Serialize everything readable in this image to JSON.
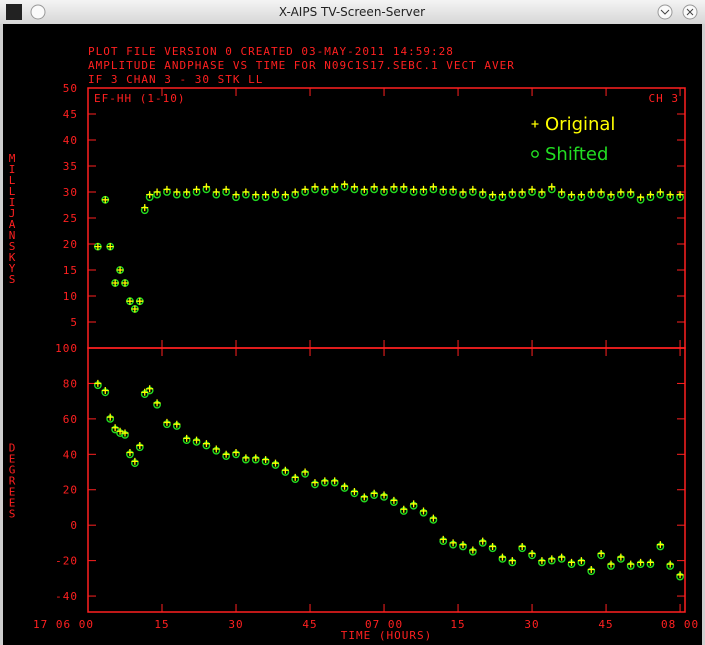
{
  "window": {
    "title": "X-AIPS TV-Screen-Server"
  },
  "header": {
    "lines": [
      "PLOT FILE VERSION 0  CREATED 03-MAY-2011 14:59:28",
      "AMPLITUDE ANDPHASE VS TIME  FOR  N09C1S17.SEBC.1  VECT AVER",
      "IF 3    CHAN 3 - 30    STK LL"
    ]
  },
  "chart_data": [
    {
      "type": "scatter",
      "ylabel": "MILLIJANSKYS",
      "panel_label": "EF-HH (1-10)",
      "channel_label": "CH 3",
      "xlim": [
        0,
        121
      ],
      "ylim": [
        0,
        50
      ],
      "yticks": [
        5,
        10,
        15,
        20,
        25,
        30,
        35,
        40,
        45,
        50
      ],
      "grid": false,
      "legend": "upper right",
      "x": [
        2,
        3.5,
        4.5,
        5.5,
        6.5,
        7.5,
        8.5,
        9.5,
        10.5,
        11.5,
        12.5,
        14,
        16,
        18,
        20,
        22,
        24,
        26,
        28,
        30,
        32,
        34,
        36,
        38,
        40,
        42,
        44,
        46,
        48,
        50,
        52,
        54,
        56,
        58,
        60,
        62,
        64,
        66,
        68,
        70,
        72,
        74,
        76,
        78,
        80,
        82,
        84,
        86,
        88,
        90,
        92,
        94,
        96,
        98,
        100,
        102,
        104,
        106,
        108,
        110,
        112,
        114,
        116,
        118,
        120
      ],
      "series": [
        {
          "name": "Original",
          "color": "#ffff00",
          "marker": "plus",
          "values": [
            19.5,
            28.5,
            19.5,
            12.5,
            15,
            12.5,
            9,
            7.5,
            9,
            27,
            29.5,
            30,
            30.5,
            30,
            30,
            30.5,
            31,
            30,
            30.5,
            29.5,
            30,
            29.5,
            29.5,
            30,
            29.5,
            30,
            30.5,
            31,
            30.5,
            31,
            31.5,
            31,
            30.5,
            31,
            30.5,
            31,
            31,
            30.5,
            30.5,
            31,
            30.5,
            30.5,
            30,
            30.5,
            30,
            29.5,
            29.5,
            30,
            30,
            30.5,
            30,
            31,
            30,
            29.5,
            29.5,
            30,
            30,
            29.5,
            30,
            30,
            29,
            29.5,
            30,
            29.5,
            29.5
          ]
        },
        {
          "name": "Shifted",
          "color": "#22dd22",
          "marker": "circle",
          "values": [
            19.5,
            28.5,
            19.5,
            12.5,
            15,
            12.5,
            9,
            7.5,
            9,
            26.5,
            29,
            29.5,
            30,
            29.5,
            29.5,
            30,
            30.5,
            29.5,
            30,
            29,
            29.5,
            29,
            29,
            29.5,
            29,
            29.5,
            30,
            30.5,
            30,
            30.5,
            31,
            30.5,
            30,
            30.5,
            30,
            30.5,
            30.5,
            30,
            30,
            30.5,
            30,
            30,
            29.5,
            30,
            29.5,
            29,
            29,
            29.5,
            29.5,
            30,
            29.5,
            30.5,
            29.5,
            29,
            29,
            29.5,
            29.5,
            29,
            29.5,
            29.5,
            28.5,
            29,
            29.5,
            29,
            29
          ]
        }
      ]
    },
    {
      "type": "scatter",
      "ylabel": "DEGREES",
      "xlabel": "TIME (HOURS)",
      "xlim": [
        0,
        121
      ],
      "ylim": [
        -49,
        100
      ],
      "yticks": [
        -40,
        -20,
        0,
        20,
        40,
        60,
        80,
        100
      ],
      "grid": false,
      "xticks": [
        {
          "value": 0,
          "label": "17 06 00"
        },
        15,
        30,
        45,
        {
          "value": 60,
          "label": "07 00"
        },
        {
          "value": 75,
          "label": "15"
        },
        {
          "value": 90,
          "label": "30"
        },
        {
          "value": 105,
          "label": "45"
        },
        {
          "value": 120,
          "label": "08 00"
        }
      ],
      "x": [
        2,
        3.5,
        4.5,
        5.5,
        6.5,
        7.5,
        8.5,
        9.5,
        10.5,
        11.5,
        12.5,
        14,
        16,
        18,
        20,
        22,
        24,
        26,
        28,
        30,
        32,
        34,
        36,
        38,
        40,
        42,
        44,
        46,
        48,
        50,
        52,
        54,
        56,
        58,
        60,
        62,
        64,
        66,
        68,
        70,
        72,
        74,
        76,
        78,
        80,
        82,
        84,
        86,
        88,
        90,
        92,
        94,
        96,
        98,
        100,
        102,
        104,
        106,
        108,
        110,
        112,
        114,
        116,
        118,
        120
      ],
      "series": [
        {
          "name": "Original",
          "color": "#ffff00",
          "marker": "plus",
          "values": [
            80,
            76,
            61,
            55,
            53,
            52,
            41,
            36,
            45,
            75,
            77,
            69,
            58,
            57,
            49,
            48,
            46,
            43,
            40,
            41,
            38,
            38,
            37,
            35,
            31,
            27,
            30,
            24,
            25,
            25,
            22,
            19,
            16,
            18,
            17,
            14,
            9,
            12,
            8,
            4,
            -8,
            -10,
            -11,
            -14,
            -9,
            -12,
            -18,
            -20,
            -12,
            -16,
            -20,
            -19,
            -18,
            -21,
            -20,
            -25,
            -16,
            -22,
            -18,
            -22,
            -21,
            -21,
            -11,
            -22,
            -28
          ]
        },
        {
          "name": "Shifted",
          "color": "#22dd22",
          "marker": "circle",
          "values": [
            79,
            75,
            60,
            54,
            52,
            51,
            40,
            35,
            44,
            74,
            76,
            68,
            57,
            56,
            48,
            47,
            45,
            42,
            39,
            40,
            37,
            37,
            36,
            34,
            30,
            26,
            29,
            23,
            24,
            24,
            21,
            18,
            15,
            17,
            16,
            13,
            8,
            11,
            7,
            3,
            -9,
            -11,
            -12,
            -15,
            -10,
            -13,
            -19,
            -21,
            -13,
            -17,
            -21,
            -20,
            -19,
            -22,
            -21,
            -26,
            -17,
            -23,
            -19,
            -23,
            -22,
            -22,
            -12,
            -23,
            -29
          ]
        }
      ]
    }
  ]
}
